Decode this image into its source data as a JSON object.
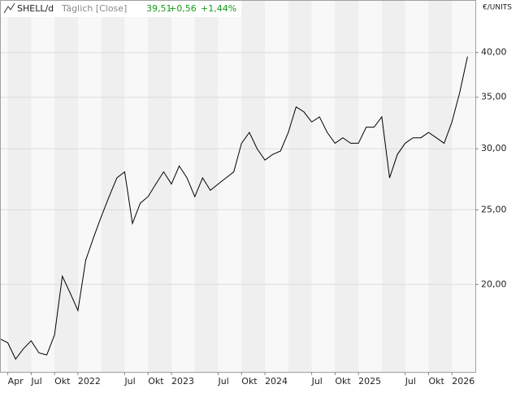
{
  "chart_data": {
    "type": "line",
    "symbol": "SHELL/d",
    "subtitle": "Täglich [Close]",
    "quote": {
      "last": "39,51",
      "change": "+0,56",
      "change_pct": "+1,44%"
    },
    "y_label": "€/UNITS",
    "log_y": true,
    "grid": true,
    "color": "#000000",
    "quote_color": "#1a9a1a",
    "x": [
      "2021-03",
      "2021-04",
      "2021-05",
      "2021-06",
      "2021-07",
      "2021-08",
      "2021-09",
      "2021-10",
      "2021-11",
      "2021-12",
      "2022-01",
      "2022-02",
      "2022-03",
      "2022-04",
      "2022-05",
      "2022-06",
      "2022-07",
      "2022-08",
      "2022-09",
      "2022-10",
      "2022-11",
      "2022-12",
      "2023-01",
      "2023-02",
      "2023-03",
      "2023-04",
      "2023-05",
      "2023-06",
      "2023-07",
      "2023-08",
      "2023-09",
      "2023-10",
      "2023-11",
      "2023-12",
      "2024-01",
      "2024-02",
      "2024-03",
      "2024-04",
      "2024-05",
      "2024-06",
      "2024-07",
      "2024-08",
      "2024-09",
      "2024-10",
      "2024-11",
      "2024-12",
      "2025-01",
      "2025-02",
      "2025-03",
      "2025-04",
      "2025-05",
      "2025-06",
      "2025-07",
      "2025-08",
      "2025-09",
      "2025-10",
      "2025-11",
      "2025-12",
      "2026-01",
      "2026-02",
      "2026-03"
    ],
    "values": [
      17.0,
      16.8,
      16.0,
      16.5,
      16.9,
      16.3,
      16.2,
      17.2,
      20.5,
      19.5,
      18.5,
      21.5,
      23.0,
      24.5,
      26.0,
      27.5,
      28.0,
      24.0,
      25.5,
      26.0,
      27.0,
      28.0,
      27.0,
      28.5,
      27.5,
      26.0,
      27.5,
      26.5,
      27.0,
      27.5,
      28.0,
      30.5,
      31.5,
      30.0,
      29.0,
      29.5,
      29.8,
      31.5,
      34.0,
      33.5,
      32.5,
      33.0,
      31.5,
      30.5,
      31.0,
      30.5,
      30.5,
      32.0,
      32.0,
      33.0,
      27.5,
      29.5,
      30.5,
      31.0,
      31.0,
      31.5,
      31.0,
      30.5,
      32.5,
      35.5,
      39.51
    ],
    "xlim": [
      "2021-03",
      "2026-04"
    ],
    "xticks": [
      {
        "value": "2021-04",
        "label": "Apr"
      },
      {
        "value": "2021-07",
        "label": "Jul"
      },
      {
        "value": "2021-10",
        "label": "Okt"
      },
      {
        "value": "2022-01",
        "label": "2022"
      },
      {
        "value": "2022-07",
        "label": "Jul"
      },
      {
        "value": "2022-10",
        "label": "Okt"
      },
      {
        "value": "2023-01",
        "label": "2023"
      },
      {
        "value": "2023-07",
        "label": "Jul"
      },
      {
        "value": "2023-10",
        "label": "Okt"
      },
      {
        "value": "2024-01",
        "label": "2024"
      },
      {
        "value": "2024-07",
        "label": "Jul"
      },
      {
        "value": "2024-10",
        "label": "Okt"
      },
      {
        "value": "2025-01",
        "label": "2025"
      },
      {
        "value": "2025-07",
        "label": "Jul"
      },
      {
        "value": "2025-10",
        "label": "Okt"
      },
      {
        "value": "2026-01",
        "label": "2026"
      }
    ],
    "ylim": [
      15.4,
      46.8
    ],
    "yticks": [
      {
        "value": 20,
        "label": "20,00"
      },
      {
        "value": 25,
        "label": "25,00"
      },
      {
        "value": 30,
        "label": "30,00"
      },
      {
        "value": 35,
        "label": "35,00"
      },
      {
        "value": 40,
        "label": "40,00"
      }
    ]
  }
}
